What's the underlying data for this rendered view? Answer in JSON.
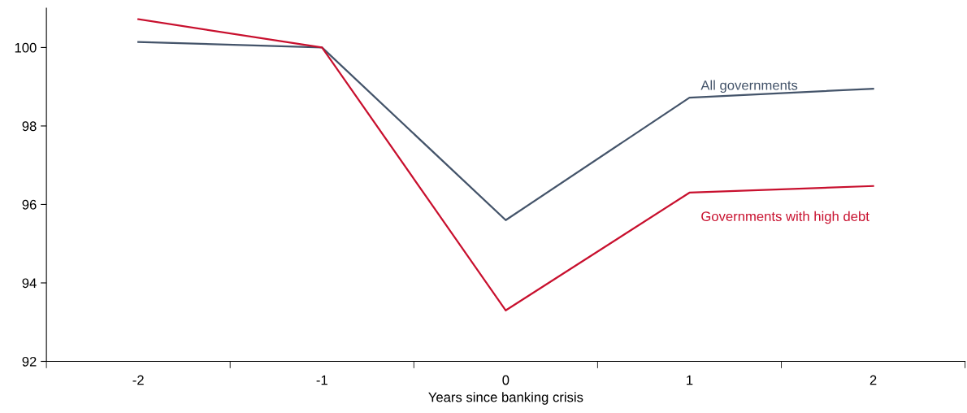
{
  "chart_data": {
    "type": "line",
    "xlabel": "Years since banking crisis",
    "categories": [
      "-2",
      "-1",
      "0",
      "1",
      "2"
    ],
    "series": [
      {
        "name": "All governments",
        "color": "#44546a",
        "values": [
          100.14,
          100.0,
          95.6,
          98.72,
          98.95
        ]
      },
      {
        "name": "Governments with high debt",
        "color": "#c8102e",
        "values": [
          100.72,
          100.0,
          93.3,
          96.3,
          96.47
        ]
      }
    ],
    "ylim": [
      92,
      101
    ],
    "yticks": [
      92,
      94,
      96,
      98,
      100
    ],
    "grid": false,
    "legend": false,
    "marker": "none",
    "line_style": "solid"
  }
}
